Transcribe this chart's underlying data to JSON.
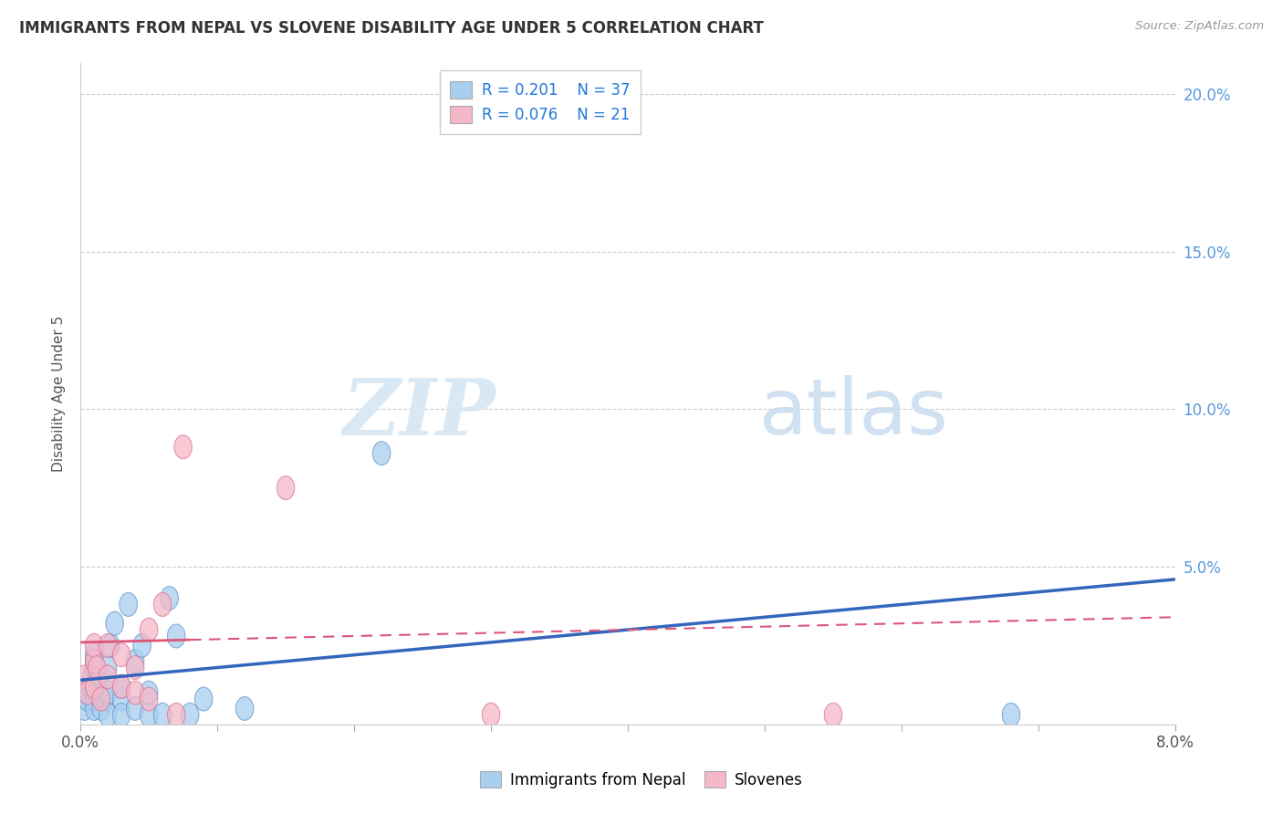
{
  "title": "IMMIGRANTS FROM NEPAL VS SLOVENE DISABILITY AGE UNDER 5 CORRELATION CHART",
  "source": "Source: ZipAtlas.com",
  "ylabel": "Disability Age Under 5",
  "xlim": [
    0.0,
    0.08
  ],
  "ylim": [
    0.0,
    0.21
  ],
  "xticks": [
    0.0,
    0.01,
    0.02,
    0.03,
    0.04,
    0.05,
    0.06,
    0.07,
    0.08
  ],
  "xtick_labels": [
    "0.0%",
    "",
    "",
    "",
    "",
    "",
    "",
    "",
    "8.0%"
  ],
  "ytick_positions": [
    0.0,
    0.05,
    0.1,
    0.15,
    0.2
  ],
  "ytick_labels_right": [
    "",
    "5.0%",
    "10.0%",
    "15.0%",
    "20.0%"
  ],
  "nepal_R": 0.201,
  "nepal_N": 37,
  "slovene_R": 0.076,
  "slovene_N": 21,
  "nepal_color": "#A8CEF0",
  "nepal_edge_color": "#6699CC",
  "slovene_color": "#F5B8C8",
  "slovene_edge_color": "#DD7799",
  "nepal_line_color": "#3366BB",
  "slovene_line_color": "#DD5577",
  "watermark_color": "#D8E8F5",
  "nepal_line_x0": 0.0,
  "nepal_line_y0": 0.014,
  "nepal_line_x1": 0.08,
  "nepal_line_y1": 0.046,
  "slovene_line_x0": 0.0,
  "slovene_line_y0": 0.026,
  "slovene_line_x1": 0.08,
  "slovene_line_y1": 0.034,
  "nepal_scatter_x": [
    0.0003,
    0.0005,
    0.0006,
    0.0007,
    0.0008,
    0.001,
    0.001,
    0.001,
    0.001,
    0.001,
    0.001,
    0.0012,
    0.0015,
    0.0015,
    0.0018,
    0.002,
    0.002,
    0.002,
    0.0022,
    0.0025,
    0.003,
    0.003,
    0.003,
    0.0035,
    0.004,
    0.004,
    0.0045,
    0.005,
    0.005,
    0.006,
    0.0065,
    0.007,
    0.008,
    0.009,
    0.012,
    0.022,
    0.068
  ],
  "nepal_scatter_y": [
    0.005,
    0.008,
    0.01,
    0.012,
    0.015,
    0.018,
    0.02,
    0.022,
    0.012,
    0.008,
    0.005,
    0.01,
    0.015,
    0.005,
    0.008,
    0.01,
    0.018,
    0.003,
    0.025,
    0.032,
    0.008,
    0.012,
    0.003,
    0.038,
    0.005,
    0.02,
    0.025,
    0.003,
    0.01,
    0.003,
    0.04,
    0.028,
    0.003,
    0.008,
    0.005,
    0.086,
    0.003
  ],
  "slovene_scatter_x": [
    0.0003,
    0.0005,
    0.001,
    0.001,
    0.001,
    0.0012,
    0.0015,
    0.002,
    0.002,
    0.003,
    0.003,
    0.004,
    0.004,
    0.005,
    0.005,
    0.006,
    0.007,
    0.0075,
    0.015,
    0.03,
    0.055
  ],
  "slovene_scatter_y": [
    0.015,
    0.01,
    0.02,
    0.025,
    0.012,
    0.018,
    0.008,
    0.015,
    0.025,
    0.012,
    0.022,
    0.018,
    0.01,
    0.03,
    0.008,
    0.038,
    0.003,
    0.088,
    0.075,
    0.003,
    0.003
  ]
}
